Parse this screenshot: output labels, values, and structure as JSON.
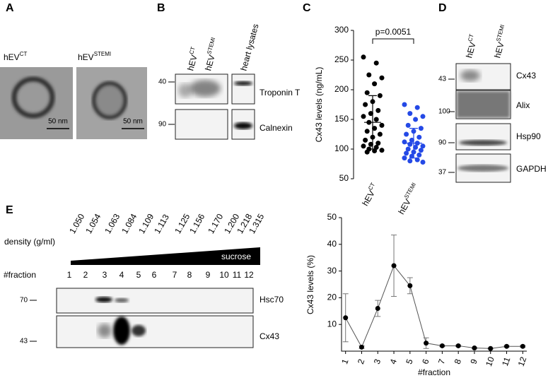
{
  "panel_a": {
    "letter": "A",
    "images": [
      {
        "label": "hEV",
        "sup": "CT",
        "scale": "50 nm"
      },
      {
        "label": "hEV",
        "sup": "STEMI",
        "scale": "50 nm"
      }
    ]
  },
  "panel_b": {
    "letter": "B",
    "lanes": [
      {
        "label": "hEV",
        "sup": "CT"
      },
      {
        "label": "hEV",
        "sup": "STEMI"
      }
    ],
    "lysate_lane": "heart lysates",
    "markers": [
      "40",
      "90"
    ],
    "blots": [
      "Troponin T",
      "Calnexin"
    ]
  },
  "panel_c": {
    "letter": "C"
  },
  "panel_d": {
    "letter": "D",
    "lanes": [
      {
        "label": "hEV",
        "sup": "CT"
      },
      {
        "label": "hEV",
        "sup": "STEMI"
      }
    ],
    "markers": [
      "43",
      "100",
      "90",
      "37"
    ],
    "blots": [
      "Cx43",
      "Alix",
      "Hsp90",
      "GAPDH"
    ]
  },
  "panel_e": {
    "letter": "E",
    "density_label": "density (g/ml)",
    "densities": [
      "1.050",
      "1.054",
      "1.063",
      "1.084",
      "1.109",
      "1.113",
      "1.125",
      "1.156",
      "1.170",
      "1.200",
      "1.218",
      "1.315"
    ],
    "gradient_label": "sucrose",
    "fraction_label": "#fraction",
    "fractions": [
      "1",
      "2",
      "3",
      "4",
      "5",
      "6",
      "7",
      "8",
      "9",
      "10",
      "11",
      "12"
    ],
    "markers": [
      "70",
      "43"
    ],
    "blots": [
      "Hsc70",
      "Cx43"
    ]
  },
  "chart_data": [
    {
      "type": "scatter",
      "y_label": "Cx43 levels (ng/mL)",
      "annotation": "p=0.0051",
      "categories": [
        "hEV",
        "hEV"
      ],
      "category_sups": [
        "CT",
        "STEMI"
      ],
      "ylim": [
        50,
        300
      ],
      "yticks": [
        50,
        100,
        150,
        200,
        250,
        300
      ],
      "series": [
        {
          "color": "#000000",
          "mean": 145,
          "sd": 45,
          "values": [
            255,
            245,
            225,
            220,
            210,
            195,
            190,
            180,
            175,
            165,
            160,
            155,
            150,
            145,
            140,
            135,
            130,
            125,
            120,
            115,
            110,
            108,
            105,
            103,
            100,
            98,
            97,
            95
          ]
        },
        {
          "color": "#2449e6",
          "mean": 110,
          "sd": 25,
          "values": [
            175,
            170,
            160,
            155,
            150,
            140,
            135,
            130,
            125,
            120,
            115,
            112,
            110,
            108,
            105,
            103,
            100,
            98,
            95,
            93,
            90,
            88,
            85,
            82,
            80,
            78
          ]
        }
      ]
    },
    {
      "type": "line",
      "x_label": "#fraction",
      "y_label": "Cx43 levels (%)",
      "x": [
        1,
        2,
        3,
        4,
        5,
        6,
        7,
        8,
        9,
        10,
        11,
        12
      ],
      "values": [
        12.5,
        1.5,
        16,
        32,
        24.5,
        3,
        2,
        2,
        1.2,
        1,
        1.8,
        1.8
      ],
      "errors": [
        9,
        0.5,
        3,
        11.5,
        3,
        2,
        0.3,
        0.3,
        0.2,
        0.2,
        0.3,
        0.3
      ],
      "color": "#000000",
      "xlim": [
        0.75,
        12.25
      ],
      "xticks": [
        1,
        2,
        3,
        4,
        5,
        6,
        7,
        8,
        9,
        10,
        11,
        12
      ],
      "ylim": [
        0,
        50
      ],
      "yticks": [
        10,
        20,
        30,
        40,
        50
      ]
    }
  ]
}
